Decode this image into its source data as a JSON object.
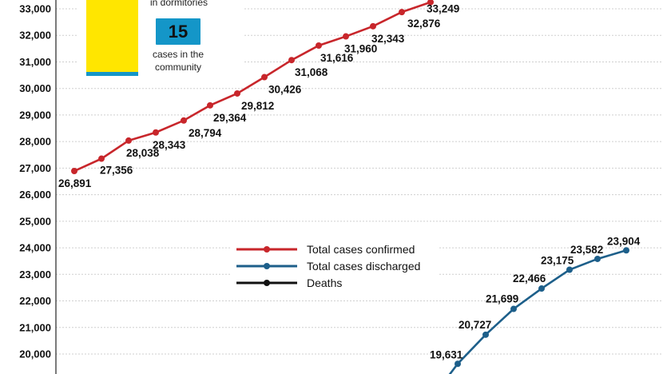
{
  "chart_data": {
    "type": "line",
    "y_axis": {
      "ticks": [
        "20,000",
        "21,000",
        "22,000",
        "23,000",
        "24,000",
        "25,000",
        "26,000",
        "27,000",
        "28,000",
        "29,000",
        "30,000",
        "31,000",
        "32,000",
        "33,000"
      ],
      "ylim": [
        19600,
        33400
      ],
      "grid": true
    },
    "series": [
      {
        "name": "Total cases confirmed",
        "color": "#c8262b",
        "values": [
          26891,
          27356,
          28038,
          28343,
          28794,
          29364,
          29812,
          30426,
          31068,
          31616,
          31960,
          32343,
          32876,
          33249
        ],
        "labels": [
          "26,891",
          "27,356",
          "28,038",
          "28,343",
          "28,794",
          "29,364",
          "29,812",
          "30,426",
          "31,068",
          "31,616",
          "31,960",
          "32,343",
          "32,876",
          "33,249"
        ]
      },
      {
        "name": "Total cases discharged",
        "color": "#1d5f8a",
        "values": [
          19631,
          20727,
          21699,
          22466,
          23175,
          23582,
          23904
        ],
        "labels": [
          "19,631",
          "20,727",
          "21,699",
          "22,466",
          "23,175",
          "23,582",
          "23,904"
        ]
      },
      {
        "name": "Deaths",
        "color": "#111111",
        "values": []
      }
    ],
    "legend_position": "center-right"
  },
  "inset": {
    "dormitory_text": "in dormitories",
    "community_count": "15",
    "community_text_line1": "cases in the",
    "community_text_line2": "community",
    "bar_color": "#ffe600",
    "badge_color": "#1496c8"
  }
}
